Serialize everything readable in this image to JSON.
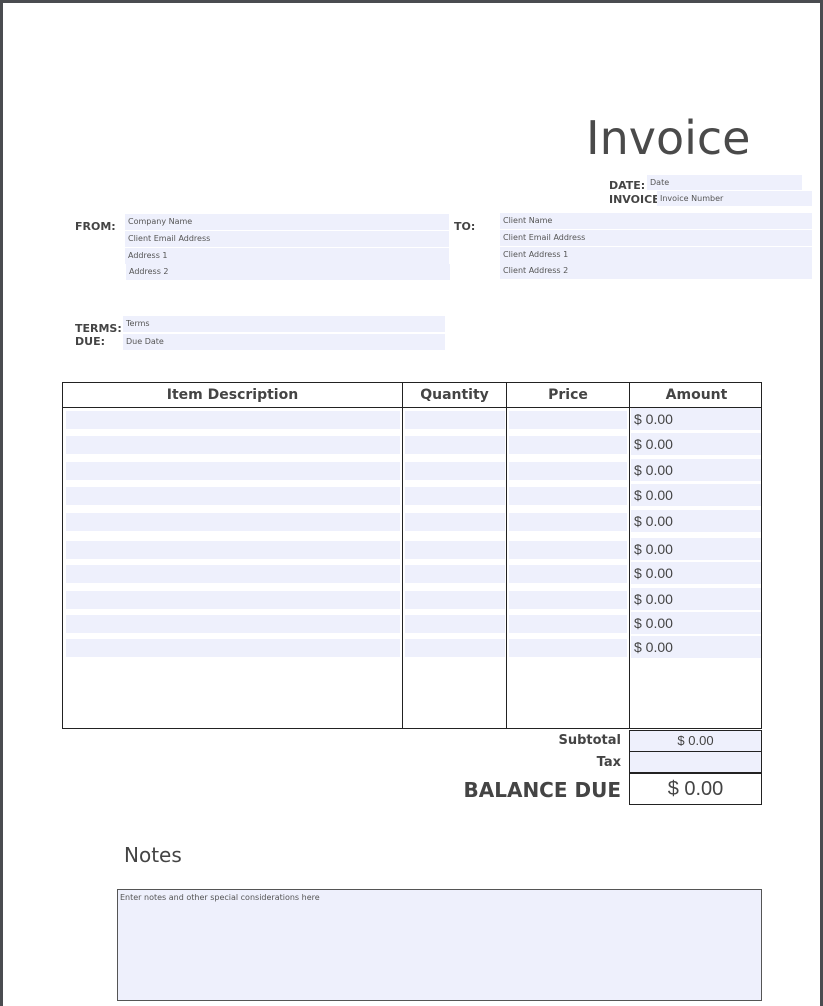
{
  "title": "Invoice",
  "date": {
    "label": "DATE:",
    "placeholder": "Date"
  },
  "invoice": {
    "label": "INVOICE",
    "placeholder": "Invoice Number"
  },
  "from": {
    "label": "FROM:",
    "fields": [
      "Company Name",
      "Client Email Address",
      "Address 1",
      "Address 2"
    ]
  },
  "to": {
    "label": "TO:",
    "fields": [
      "Client Name",
      "Client Email Address",
      "Client Address 1",
      "Client Address 2"
    ]
  },
  "terms": {
    "label": "TERMS:",
    "placeholder": "Terms"
  },
  "due": {
    "label": "DUE:",
    "placeholder": "Due Date"
  },
  "table": {
    "headers": [
      "Item Description",
      "Quantity",
      "Price",
      "Amount"
    ],
    "amounts": [
      "$ 0.00",
      "$ 0.00",
      "$ 0.00",
      "$ 0.00",
      "$ 0.00",
      "$ 0.00",
      "$ 0.00",
      "$ 0.00",
      "$ 0.00",
      "$ 0.00"
    ]
  },
  "totals": {
    "subtotal_label": "Subtotal",
    "subtotal": "$ 0.00",
    "tax_label": "Tax",
    "tax": "",
    "balance_label": "BALANCE DUE",
    "balance": "$ 0.00"
  },
  "notes": {
    "heading": "Notes",
    "placeholder": "Enter notes and other special considerations here"
  },
  "colors": {
    "field": "#eef0fc",
    "frame": "#4a4c50"
  }
}
